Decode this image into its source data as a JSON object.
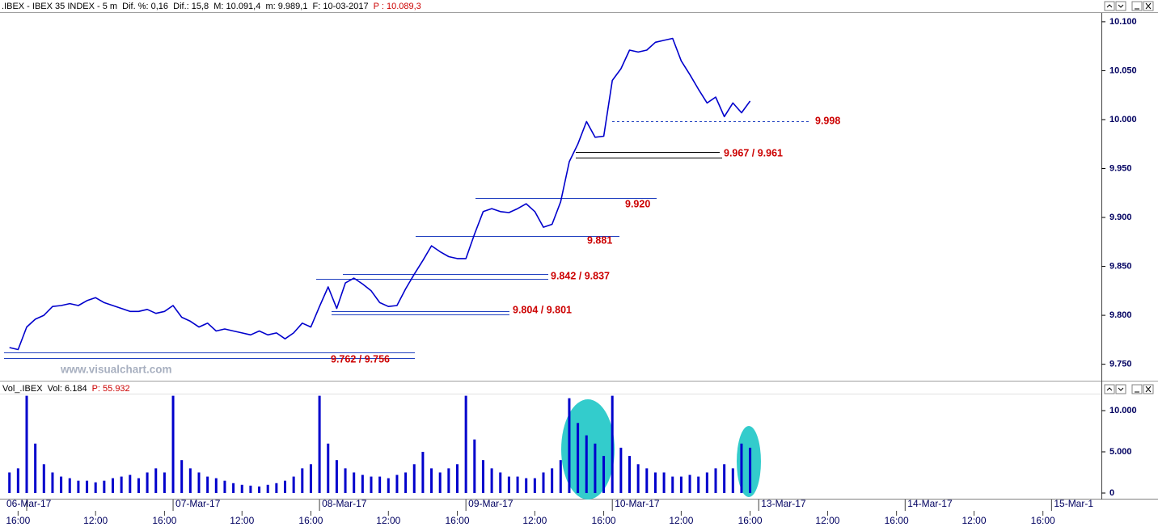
{
  "chart_data": [
    {
      "type": "line",
      "header": ".IBEX - IBEX 35 INDEX - 5 m  Dif. %: 0,16  Dif.: 15,8  M: 10.091,4  m: 9.989,1  F: 10-03-2017",
      "header_price": "P : 10.089,3",
      "watermark": "www.visualchart.com",
      "dates": [
        "06-Mar-17",
        "07-Mar-17",
        "08-Mar-17",
        "09-Mar-17",
        "10-Mar-17",
        "13-Mar-17",
        "14-Mar-17",
        "15-Mar-1"
      ],
      "categories": [
        null,
        "16:00",
        null,
        null,
        null,
        null,
        null,
        null,
        null,
        null,
        "12:00",
        null,
        null,
        null,
        null,
        null,
        null,
        null,
        "16:00",
        null,
        null,
        null,
        null,
        null,
        null,
        null,
        null,
        "12:00",
        null,
        null,
        null,
        null,
        null,
        null,
        null,
        "16:00",
        null,
        null,
        null,
        null,
        null,
        null,
        null,
        null,
        "12:00",
        null,
        null,
        null,
        null,
        null,
        null,
        null,
        "16:00",
        null,
        null,
        null,
        null,
        null,
        null,
        null,
        null,
        "12:00",
        null,
        null,
        null,
        null,
        null,
        null,
        null,
        "16:00",
        null,
        null,
        null,
        null,
        null,
        null,
        null,
        null,
        "12:00",
        null,
        null,
        null,
        null,
        null,
        null,
        null,
        "16:00",
        null,
        null,
        null,
        null,
        null,
        null,
        null,
        null,
        "12:00",
        null,
        null,
        null,
        null,
        null,
        null,
        null,
        "16:00",
        null,
        null,
        null,
        null,
        null,
        null,
        null,
        null,
        "12:00",
        null,
        null,
        null,
        null,
        null,
        null,
        null,
        "16:00",
        null,
        null,
        null,
        null,
        null,
        null
      ],
      "series": [
        {
          "color": "#0000cc",
          "values": [
            9767,
            9765,
            9788,
            9796,
            9800,
            9809,
            9810,
            9812,
            9810,
            9815,
            9818,
            9813,
            9810,
            9807,
            9804,
            9804,
            9806,
            9802,
            9804,
            9810,
            9798,
            9794,
            9788,
            9792,
            9784,
            9786,
            9784,
            9782,
            9780,
            9784,
            9780,
            9782,
            9776,
            9782,
            9792,
            9788,
            9809,
            9829,
            9807,
            9833,
            9838,
            9832,
            9825,
            9813,
            9809,
            9810,
            9827,
            9842,
            9856,
            9871,
            9865,
            9860,
            9858,
            9858,
            9883,
            9906,
            9909,
            9906,
            9905,
            9909,
            9914,
            9906,
            9890,
            9893,
            9916,
            9957,
            9975,
            9998,
            9982,
            9983,
            10040,
            10052,
            10071,
            10069,
            10071,
            10079,
            10081,
            10083,
            10060,
            10046,
            10031,
            10017,
            10023,
            10003,
            10017,
            10007,
            10019,
            null,
            null,
            null,
            null,
            null,
            null,
            null,
            null,
            null,
            null,
            null,
            null,
            null,
            null,
            null,
            null,
            null,
            null,
            null,
            null,
            null,
            null,
            null,
            null,
            null,
            null,
            null,
            null,
            null,
            null,
            null,
            null,
            null,
            null,
            null,
            null,
            null,
            null,
            null,
            null
          ]
        }
      ],
      "ylim": [
        9734,
        10109
      ],
      "yticks": [
        {
          "value": 10100,
          "label": "10.100"
        },
        {
          "value": 10050,
          "label": "10.050"
        },
        {
          "value": 10000,
          "label": "10.000"
        },
        {
          "value": 9950,
          "label": "9.950"
        },
        {
          "value": 9900,
          "label": "9.900"
        },
        {
          "value": 9850,
          "label": "9.850"
        },
        {
          "value": 9800,
          "label": "9.800"
        },
        {
          "value": 9750,
          "label": "9.750"
        }
      ],
      "levels": [
        {
          "values": [
            9998
          ],
          "label": "9.998",
          "color": "#2040c0"
        },
        {
          "values": [
            9967,
            9961
          ],
          "label": "9.967 / 9.961",
          "color": "#000000"
        },
        {
          "values": [
            9920
          ],
          "label": "9.920",
          "color": "#2040c0"
        },
        {
          "values": [
            9881
          ],
          "label": "9.881",
          "color": "#2040c0"
        },
        {
          "values": [
            9842,
            9837
          ],
          "label": "9.842 / 9.837",
          "color": "#2040c0"
        },
        {
          "values": [
            9804,
            9801
          ],
          "label": "9.804 / 9.801",
          "color": "#2040c0"
        },
        {
          "values": [
            9762,
            9756
          ],
          "label": "9.762 / 9.756",
          "color": "#2040c0"
        }
      ]
    },
    {
      "type": "bar",
      "header": "Vol_.IBEX  Vol: 6.184",
      "header_value": "P: 55.932",
      "color": "#0000cc",
      "values": [
        2500,
        3000,
        11800,
        6000,
        3500,
        2500,
        2000,
        1800,
        1500,
        1500,
        1300,
        1500,
        1800,
        2000,
        2200,
        1800,
        2500,
        3000,
        2500,
        11800,
        4000,
        3000,
        2500,
        2000,
        1800,
        1500,
        1200,
        1000,
        900,
        800,
        1000,
        1200,
        1500,
        2000,
        3000,
        3500,
        11800,
        6000,
        4000,
        3000,
        2500,
        2200,
        2000,
        2000,
        1800,
        2200,
        2500,
        3500,
        5000,
        3000,
        2500,
        3000,
        3500,
        11800,
        6500,
        4000,
        3000,
        2500,
        2000,
        2000,
        1800,
        1800,
        2500,
        3000,
        4000,
        11500,
        8500,
        7000,
        6000,
        4500,
        11800,
        5500,
        4500,
        3500,
        3000,
        2500,
        2500,
        2000,
        2000,
        2200,
        2000,
        2500,
        3000,
        3500,
        3000,
        6000,
        5500,
        null,
        null,
        null,
        null,
        null,
        null,
        null,
        null,
        null,
        null,
        null,
        null,
        null,
        null,
        null,
        null,
        null,
        null,
        null,
        null,
        null,
        null,
        null,
        null,
        null,
        null,
        null,
        null,
        null,
        null,
        null,
        null,
        null,
        null,
        null,
        null,
        null,
        null,
        null,
        null
      ],
      "ylim": [
        -980,
        11960
      ],
      "yticks": [
        {
          "value": 10000,
          "label": "10.000"
        },
        {
          "value": 5000,
          "label": "5.000"
        },
        0
      ]
    }
  ]
}
